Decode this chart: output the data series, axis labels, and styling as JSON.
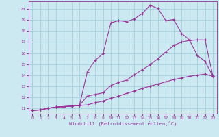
{
  "xlabel": "Windchill (Refroidissement éolien,°C)",
  "background_color": "#cce8f0",
  "grid_color": "#99ccd9",
  "line_color": "#993399",
  "xlim": [
    -0.5,
    23.5
  ],
  "ylim": [
    10.5,
    20.7
  ],
  "yticks": [
    11,
    12,
    13,
    14,
    15,
    16,
    17,
    18,
    19,
    20
  ],
  "xticks": [
    0,
    1,
    2,
    3,
    4,
    5,
    6,
    7,
    8,
    9,
    10,
    11,
    12,
    13,
    14,
    15,
    16,
    17,
    18,
    19,
    20,
    21,
    22,
    23
  ],
  "curve1_x": [
    0,
    1,
    2,
    3,
    4,
    5,
    6,
    7,
    8,
    9,
    10,
    11,
    12,
    13,
    14,
    15,
    16,
    17,
    18,
    19,
    20,
    21,
    22,
    23
  ],
  "curve1_y": [
    10.8,
    10.85,
    11.0,
    11.1,
    11.15,
    11.2,
    11.25,
    14.3,
    15.35,
    15.95,
    18.75,
    18.95,
    18.85,
    19.1,
    19.6,
    20.35,
    20.05,
    18.95,
    19.05,
    17.8,
    17.2,
    15.8,
    15.25,
    13.9
  ],
  "curve2_x": [
    0,
    1,
    2,
    3,
    4,
    5,
    6,
    7,
    8,
    9,
    10,
    11,
    12,
    13,
    14,
    15,
    16,
    17,
    18,
    19,
    20,
    21,
    22,
    23
  ],
  "curve2_y": [
    10.8,
    10.85,
    11.0,
    11.1,
    11.15,
    11.2,
    11.25,
    12.1,
    12.25,
    12.4,
    13.05,
    13.35,
    13.55,
    14.05,
    14.5,
    14.95,
    15.5,
    16.1,
    16.7,
    17.0,
    17.15,
    17.2,
    17.2,
    13.9
  ],
  "curve3_x": [
    0,
    1,
    2,
    3,
    4,
    5,
    6,
    7,
    8,
    9,
    10,
    11,
    12,
    13,
    14,
    15,
    16,
    17,
    18,
    19,
    20,
    21,
    22,
    23
  ],
  "curve3_y": [
    10.8,
    10.85,
    11.0,
    11.1,
    11.15,
    11.2,
    11.25,
    11.3,
    11.5,
    11.65,
    11.9,
    12.1,
    12.35,
    12.55,
    12.8,
    13.0,
    13.2,
    13.4,
    13.6,
    13.75,
    13.9,
    14.0,
    14.1,
    13.9
  ]
}
